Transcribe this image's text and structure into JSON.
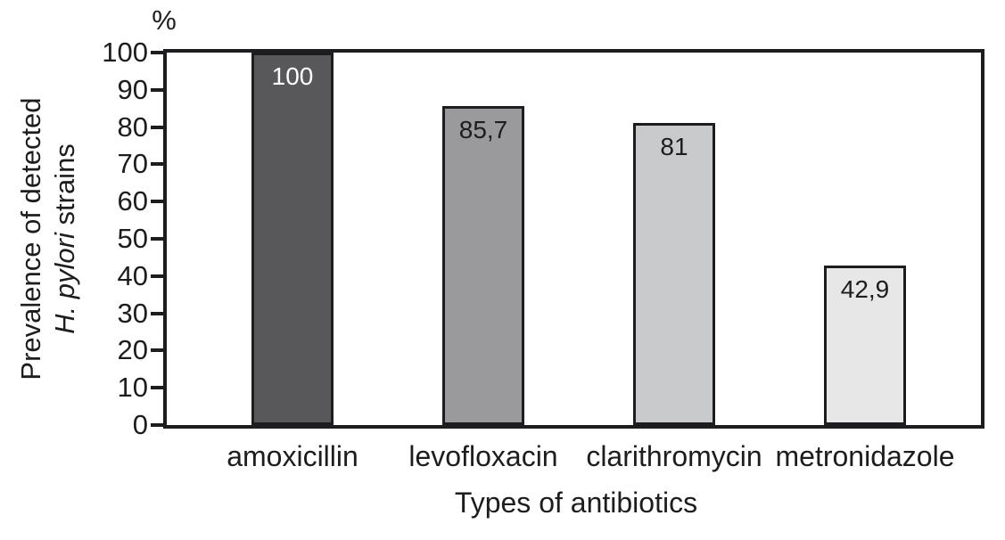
{
  "chart_data": {
    "type": "bar",
    "percent_symbol": "%",
    "xlabel": "Types of antibiotics",
    "ylabel_line1": "Prevalence of detected",
    "ylabel_line2_italic": "H. pylori",
    "ylabel_line2_rest": " strains",
    "categories": [
      "amoxicillin",
      "levofloxacin",
      "clarithromycin",
      "metronidazole"
    ],
    "values": [
      100,
      85.7,
      81,
      42.9
    ],
    "value_labels": [
      "100",
      "85,7",
      "81",
      "42,9"
    ],
    "bar_colors": [
      "#58585a",
      "#9a9a9c",
      "#c9cacb",
      "#e7e7e8"
    ],
    "value_label_colors": [
      "#ffffff",
      "#1d1d1f",
      "#1d1d1f",
      "#1d1d1f"
    ],
    "y_ticks": [
      0,
      10,
      20,
      30,
      40,
      50,
      60,
      70,
      80,
      90,
      100
    ],
    "ylim": [
      0,
      100
    ],
    "grid": false,
    "legend": false,
    "axis_color": "#1d1d1f",
    "plot_border": "top-right-bottom-left"
  }
}
